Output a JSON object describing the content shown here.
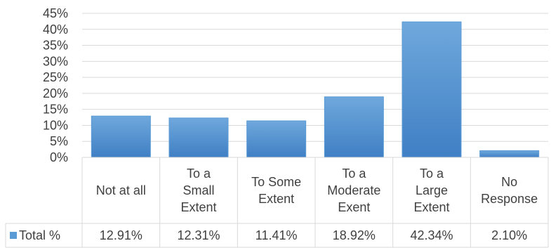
{
  "chart_data": {
    "type": "bar",
    "categories": [
      [
        "Not at all"
      ],
      [
        "To a",
        "Small",
        "Extent"
      ],
      [
        "To Some",
        "Extent"
      ],
      [
        "To a",
        "Moderate",
        "Exent"
      ],
      [
        "To a",
        "Large",
        "Extent"
      ],
      [
        "No",
        "Response"
      ]
    ],
    "series": [
      {
        "name": "Total %",
        "values": [
          12.91,
          12.31,
          11.41,
          18.92,
          42.34,
          2.1
        ],
        "value_labels": [
          "12.91%",
          "12.31%",
          "11.41%",
          "18.92%",
          "42.34%",
          "2.10%"
        ]
      }
    ],
    "ylim": [
      0,
      45
    ],
    "yticks": [
      0,
      5,
      10,
      15,
      20,
      25,
      30,
      35,
      40,
      45
    ],
    "ytick_labels": [
      "0%",
      "5%",
      "10%",
      "15%",
      "20%",
      "25%",
      "30%",
      "35%",
      "40%",
      "45%"
    ],
    "grid": true,
    "data_table": true,
    "legend": "data-table-row",
    "colors": {
      "bar_top": "#6fa8dc",
      "bar_bottom": "#3f7fc4",
      "bar_edge": "#5b9bd5",
      "legend_key": "#5b9bd5",
      "grid": "#d9d9d9",
      "text": "#404040"
    }
  }
}
